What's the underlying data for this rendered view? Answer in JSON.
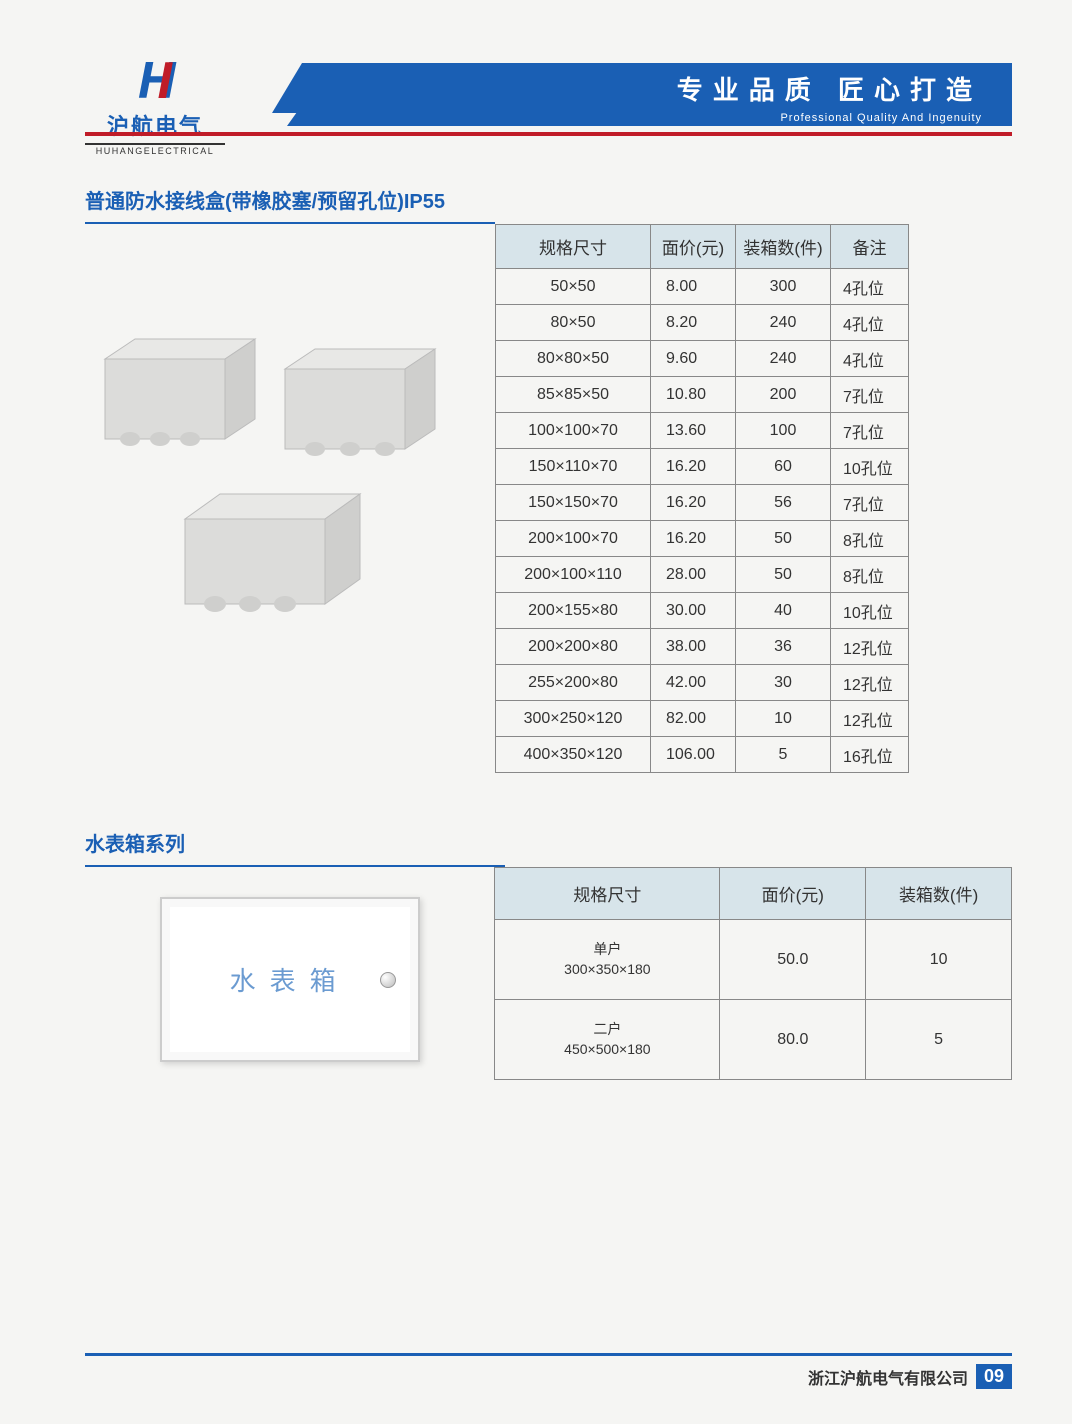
{
  "header": {
    "logo_cn": "沪航电气",
    "logo_en": "HUHANGELECTRICAL",
    "banner_cn": "专业品质  匠心打造",
    "banner_en": "Professional Quality And Ingenuity"
  },
  "colors": {
    "brand_blue": "#1a5fb4",
    "brand_red": "#c01c28",
    "table_header_bg": "#d7e4ea",
    "border": "#888888",
    "page_bg": "#f5f5f3"
  },
  "section1": {
    "title": "普通防水接线盒(带橡胶塞/预留孔位)IP55",
    "columns": [
      "规格尺寸",
      "面价(元)",
      "装箱数(件)",
      "备注"
    ],
    "rows": [
      {
        "size": "50×50",
        "price": "8.00",
        "qty": "300",
        "note": "4孔位"
      },
      {
        "size": "80×50",
        "price": "8.20",
        "qty": "240",
        "note": "4孔位"
      },
      {
        "size": "80×80×50",
        "price": "9.60",
        "qty": "240",
        "note": "4孔位"
      },
      {
        "size": "85×85×50",
        "price": "10.80",
        "qty": "200",
        "note": "7孔位"
      },
      {
        "size": "100×100×70",
        "price": "13.60",
        "qty": "100",
        "note": "7孔位"
      },
      {
        "size": "150×110×70",
        "price": "16.20",
        "qty": "60",
        "note": "10孔位"
      },
      {
        "size": "150×150×70",
        "price": "16.20",
        "qty": "56",
        "note": "7孔位"
      },
      {
        "size": "200×100×70",
        "price": "16.20",
        "qty": "50",
        "note": "8孔位"
      },
      {
        "size": "200×100×110",
        "price": "28.00",
        "qty": "50",
        "note": "8孔位"
      },
      {
        "size": "200×155×80",
        "price": "30.00",
        "qty": "40",
        "note": "10孔位"
      },
      {
        "size": "200×200×80",
        "price": "38.00",
        "qty": "36",
        "note": "12孔位"
      },
      {
        "size": "255×200×80",
        "price": "42.00",
        "qty": "30",
        "note": "12孔位"
      },
      {
        "size": "300×250×120",
        "price": "82.00",
        "qty": "10",
        "note": "12孔位"
      },
      {
        "size": "400×350×120",
        "price": "106.00",
        "qty": "5",
        "note": "16孔位"
      }
    ]
  },
  "section2": {
    "title": "水表箱系列",
    "box_label": "水表箱",
    "columns": [
      "规格尺寸",
      "面价(元)",
      "装箱数(件)"
    ],
    "rows": [
      {
        "type": "单户",
        "size": "300×350×180",
        "price": "50.0",
        "qty": "10"
      },
      {
        "type": "二户",
        "size": "450×500×180",
        "price": "80.0",
        "qty": "5"
      }
    ]
  },
  "footer": {
    "company": "浙江沪航电气有限公司",
    "page_num": "09"
  }
}
